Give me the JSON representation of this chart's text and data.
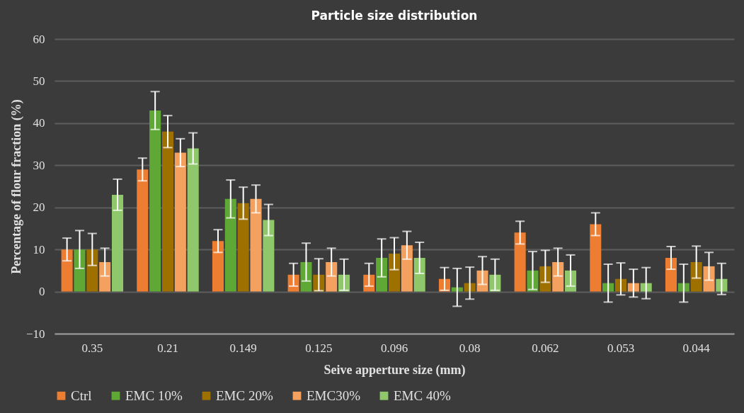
{
  "chart_data": {
    "type": "bar",
    "title": "Particle size distribution",
    "xlabel": "Seive apperture size (mm)",
    "ylabel": "Percentage of flour fraction (%)",
    "categories": [
      "0.35",
      "0.21",
      "0.149",
      "0.125",
      "0.096",
      "0.08",
      "0.062",
      "0.053",
      "0.044"
    ],
    "series": [
      {
        "name": "Ctrl",
        "color": "#ed7d31",
        "values": [
          10,
          29,
          12,
          4,
          4,
          3,
          14,
          16,
          8
        ],
        "errors": [
          2.7,
          2.7,
          2.7,
          2.7,
          2.7,
          2.7,
          2.7,
          2.7,
          2.7
        ]
      },
      {
        "name": "EMC 10%",
        "color": "#5fa836",
        "values": [
          10,
          43,
          22,
          7,
          8,
          1,
          5,
          2,
          2
        ],
        "errors": [
          4.5,
          4.5,
          4.5,
          4.5,
          4.5,
          4.5,
          4.5,
          4.5,
          4.5
        ]
      },
      {
        "name": "EMC 20%",
        "color": "#9e7000",
        "values": [
          10,
          38,
          21,
          4,
          9,
          2,
          6,
          3,
          7
        ],
        "errors": [
          3.8,
          3.8,
          3.8,
          3.8,
          3.8,
          3.8,
          3.8,
          3.8,
          3.8
        ]
      },
      {
        "name": "EMC30%",
        "color": "#f4a05e",
        "values": [
          7,
          33,
          22,
          7,
          11,
          5,
          7,
          2,
          6
        ],
        "errors": [
          3.3,
          3.3,
          3.3,
          3.3,
          3.3,
          3.3,
          3.3,
          3.3,
          3.3
        ]
      },
      {
        "name": "EMC 40%",
        "color": "#8fc86a",
        "values": [
          23,
          34,
          17,
          4,
          8,
          4,
          5,
          2,
          3
        ],
        "errors": [
          3.7,
          3.7,
          3.7,
          3.7,
          3.7,
          3.7,
          3.7,
          3.7,
          3.7
        ]
      }
    ],
    "ylim": [
      -10,
      60
    ],
    "yticks": [
      -10,
      0,
      10,
      20,
      30,
      40,
      50,
      60
    ],
    "grid": "y",
    "legend": "bottom"
  }
}
